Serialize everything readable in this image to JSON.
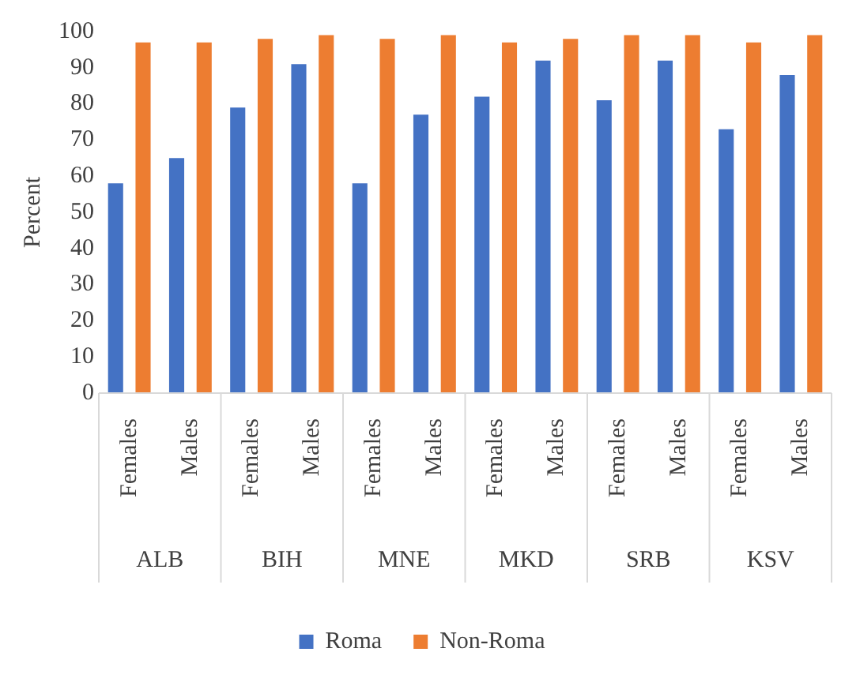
{
  "chart_data": {
    "type": "bar",
    "ylabel": "Percent",
    "categories": [
      "Females",
      "Males",
      "Females",
      "Males",
      "Females",
      "Males",
      "Females",
      "Males",
      "Females",
      "Males",
      "Females",
      "Males"
    ],
    "annotations": [
      "ALB",
      "BIH",
      "MNE",
      "MKD",
      "SRB",
      "KSV"
    ],
    "series": [
      {
        "name": "Roma",
        "color": "#4472c4",
        "values": [
          58,
          65,
          79,
          91,
          58,
          77,
          82,
          92,
          81,
          92,
          73,
          88
        ]
      },
      {
        "name": "Non-Roma",
        "color": "#ed7d31",
        "values": [
          97,
          97,
          98,
          99,
          98,
          99,
          97,
          98,
          99,
          99,
          97,
          99
        ]
      }
    ],
    "ylim": [
      0,
      100
    ],
    "yticks": [
      0,
      10,
      20,
      30,
      40,
      50,
      60,
      70,
      80,
      90,
      100
    ],
    "grid": false,
    "legend": "bottom"
  }
}
